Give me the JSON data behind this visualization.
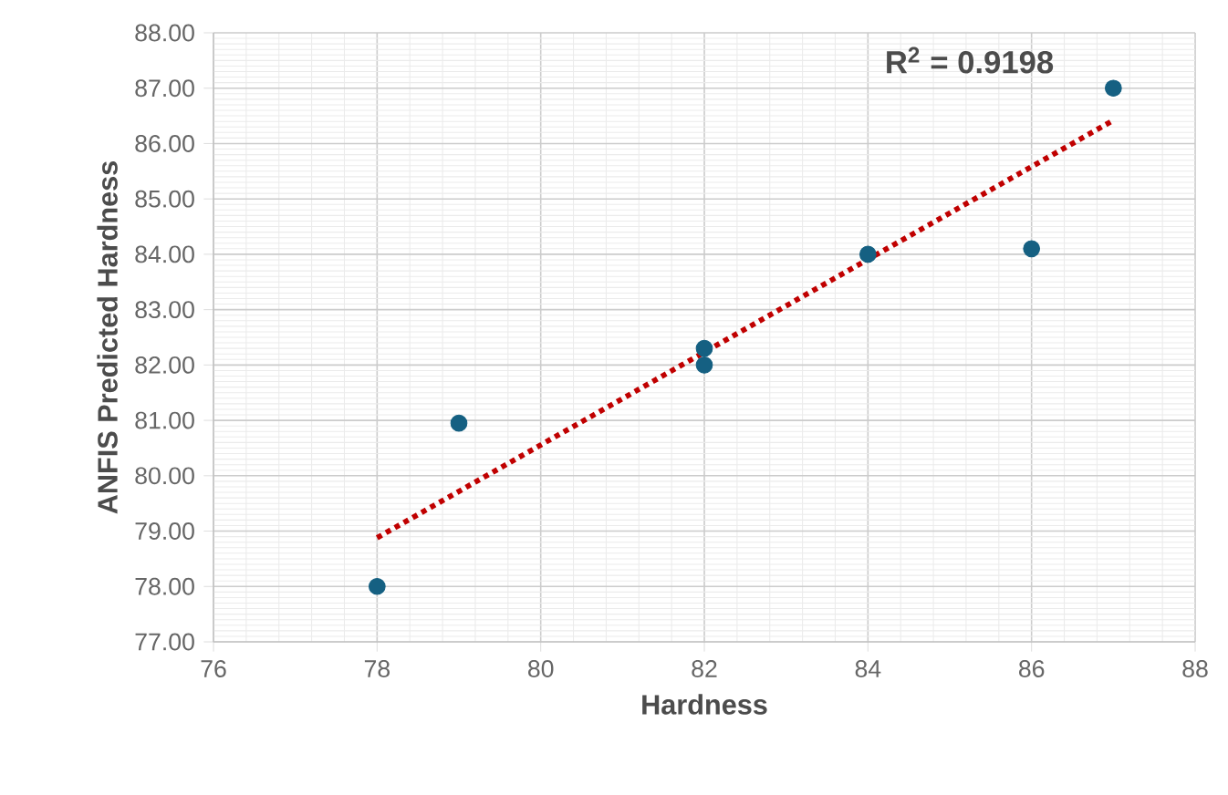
{
  "chart_data": {
    "type": "scatter",
    "xlabel": "Hardness",
    "ylabel": "ANFIS Predicted Hardness",
    "series": [
      {
        "color": "#156082",
        "x": [
          78,
          79,
          82,
          82,
          84,
          86,
          87
        ],
        "values": [
          78.0,
          80.95,
          82.3,
          82.0,
          84.0,
          84.1,
          87.0
        ]
      },
      {
        "type": "line",
        "color": "#c00000",
        "line_style": "dotted",
        "marker": "none",
        "x": [
          78,
          87
        ],
        "values": [
          78.88,
          86.42
        ]
      }
    ],
    "xlim": [
      76,
      88
    ],
    "xticks": [
      76,
      78,
      80,
      82,
      84,
      86,
      88
    ],
    "ylim": [
      77,
      88
    ],
    "yticks": [
      {
        "value": 77,
        "label": "77.00"
      },
      {
        "value": 78,
        "label": "78.00"
      },
      {
        "value": 79,
        "label": "79.00"
      },
      {
        "value": 80,
        "label": "80.00"
      },
      {
        "value": 81,
        "label": "81.00"
      },
      {
        "value": 82,
        "label": "82.00"
      },
      {
        "value": 83,
        "label": "83.00"
      },
      {
        "value": 84,
        "label": "84.00"
      },
      {
        "value": 85,
        "label": "85.00"
      },
      {
        "value": 86,
        "label": "86.00"
      },
      {
        "value": 87,
        "label": "87.00"
      },
      {
        "value": 88,
        "label": "88.00"
      }
    ],
    "grid": true,
    "marker": "circle",
    "annotations": [
      "R$^{2}$ = 0.9198"
    ]
  }
}
